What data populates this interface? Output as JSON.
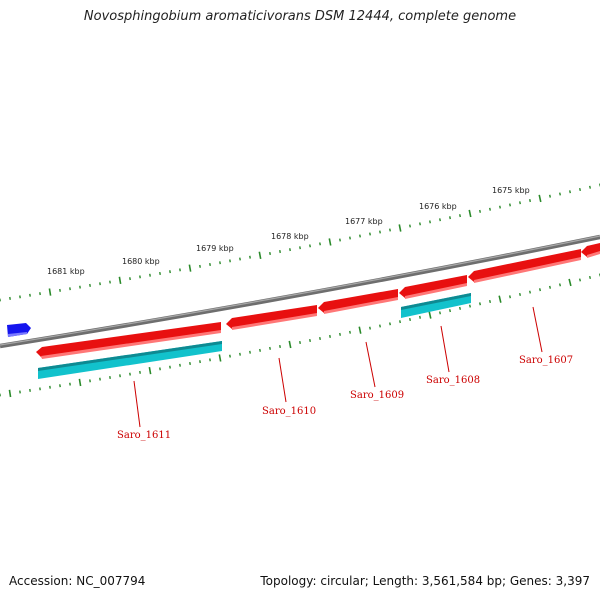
{
  "title": "Novosphingobium aromaticivorans DSM 12444, complete genome",
  "accession": "Accession: NC_007794",
  "summary": "Topology: circular; Length: 3,561,584 bp; Genes: 3,397",
  "colors": {
    "backbone": "#7a7a7a",
    "forward_gene": "#ee1111",
    "reverse_gene": "#11c4cc",
    "other_feature": "#1111ee",
    "tick": "#2a8a2a",
    "label": "#cc0000"
  },
  "kbp_ticks": [
    "1681 kbp",
    "1680 kbp",
    "1679 kbp",
    "1678 kbp",
    "1677 kbp",
    "1676 kbp",
    "1675 kbp"
  ],
  "genes": [
    "Saro_1611",
    "Saro_1610",
    "Saro_1609",
    "Saro_1608",
    "Saro_1607"
  ]
}
